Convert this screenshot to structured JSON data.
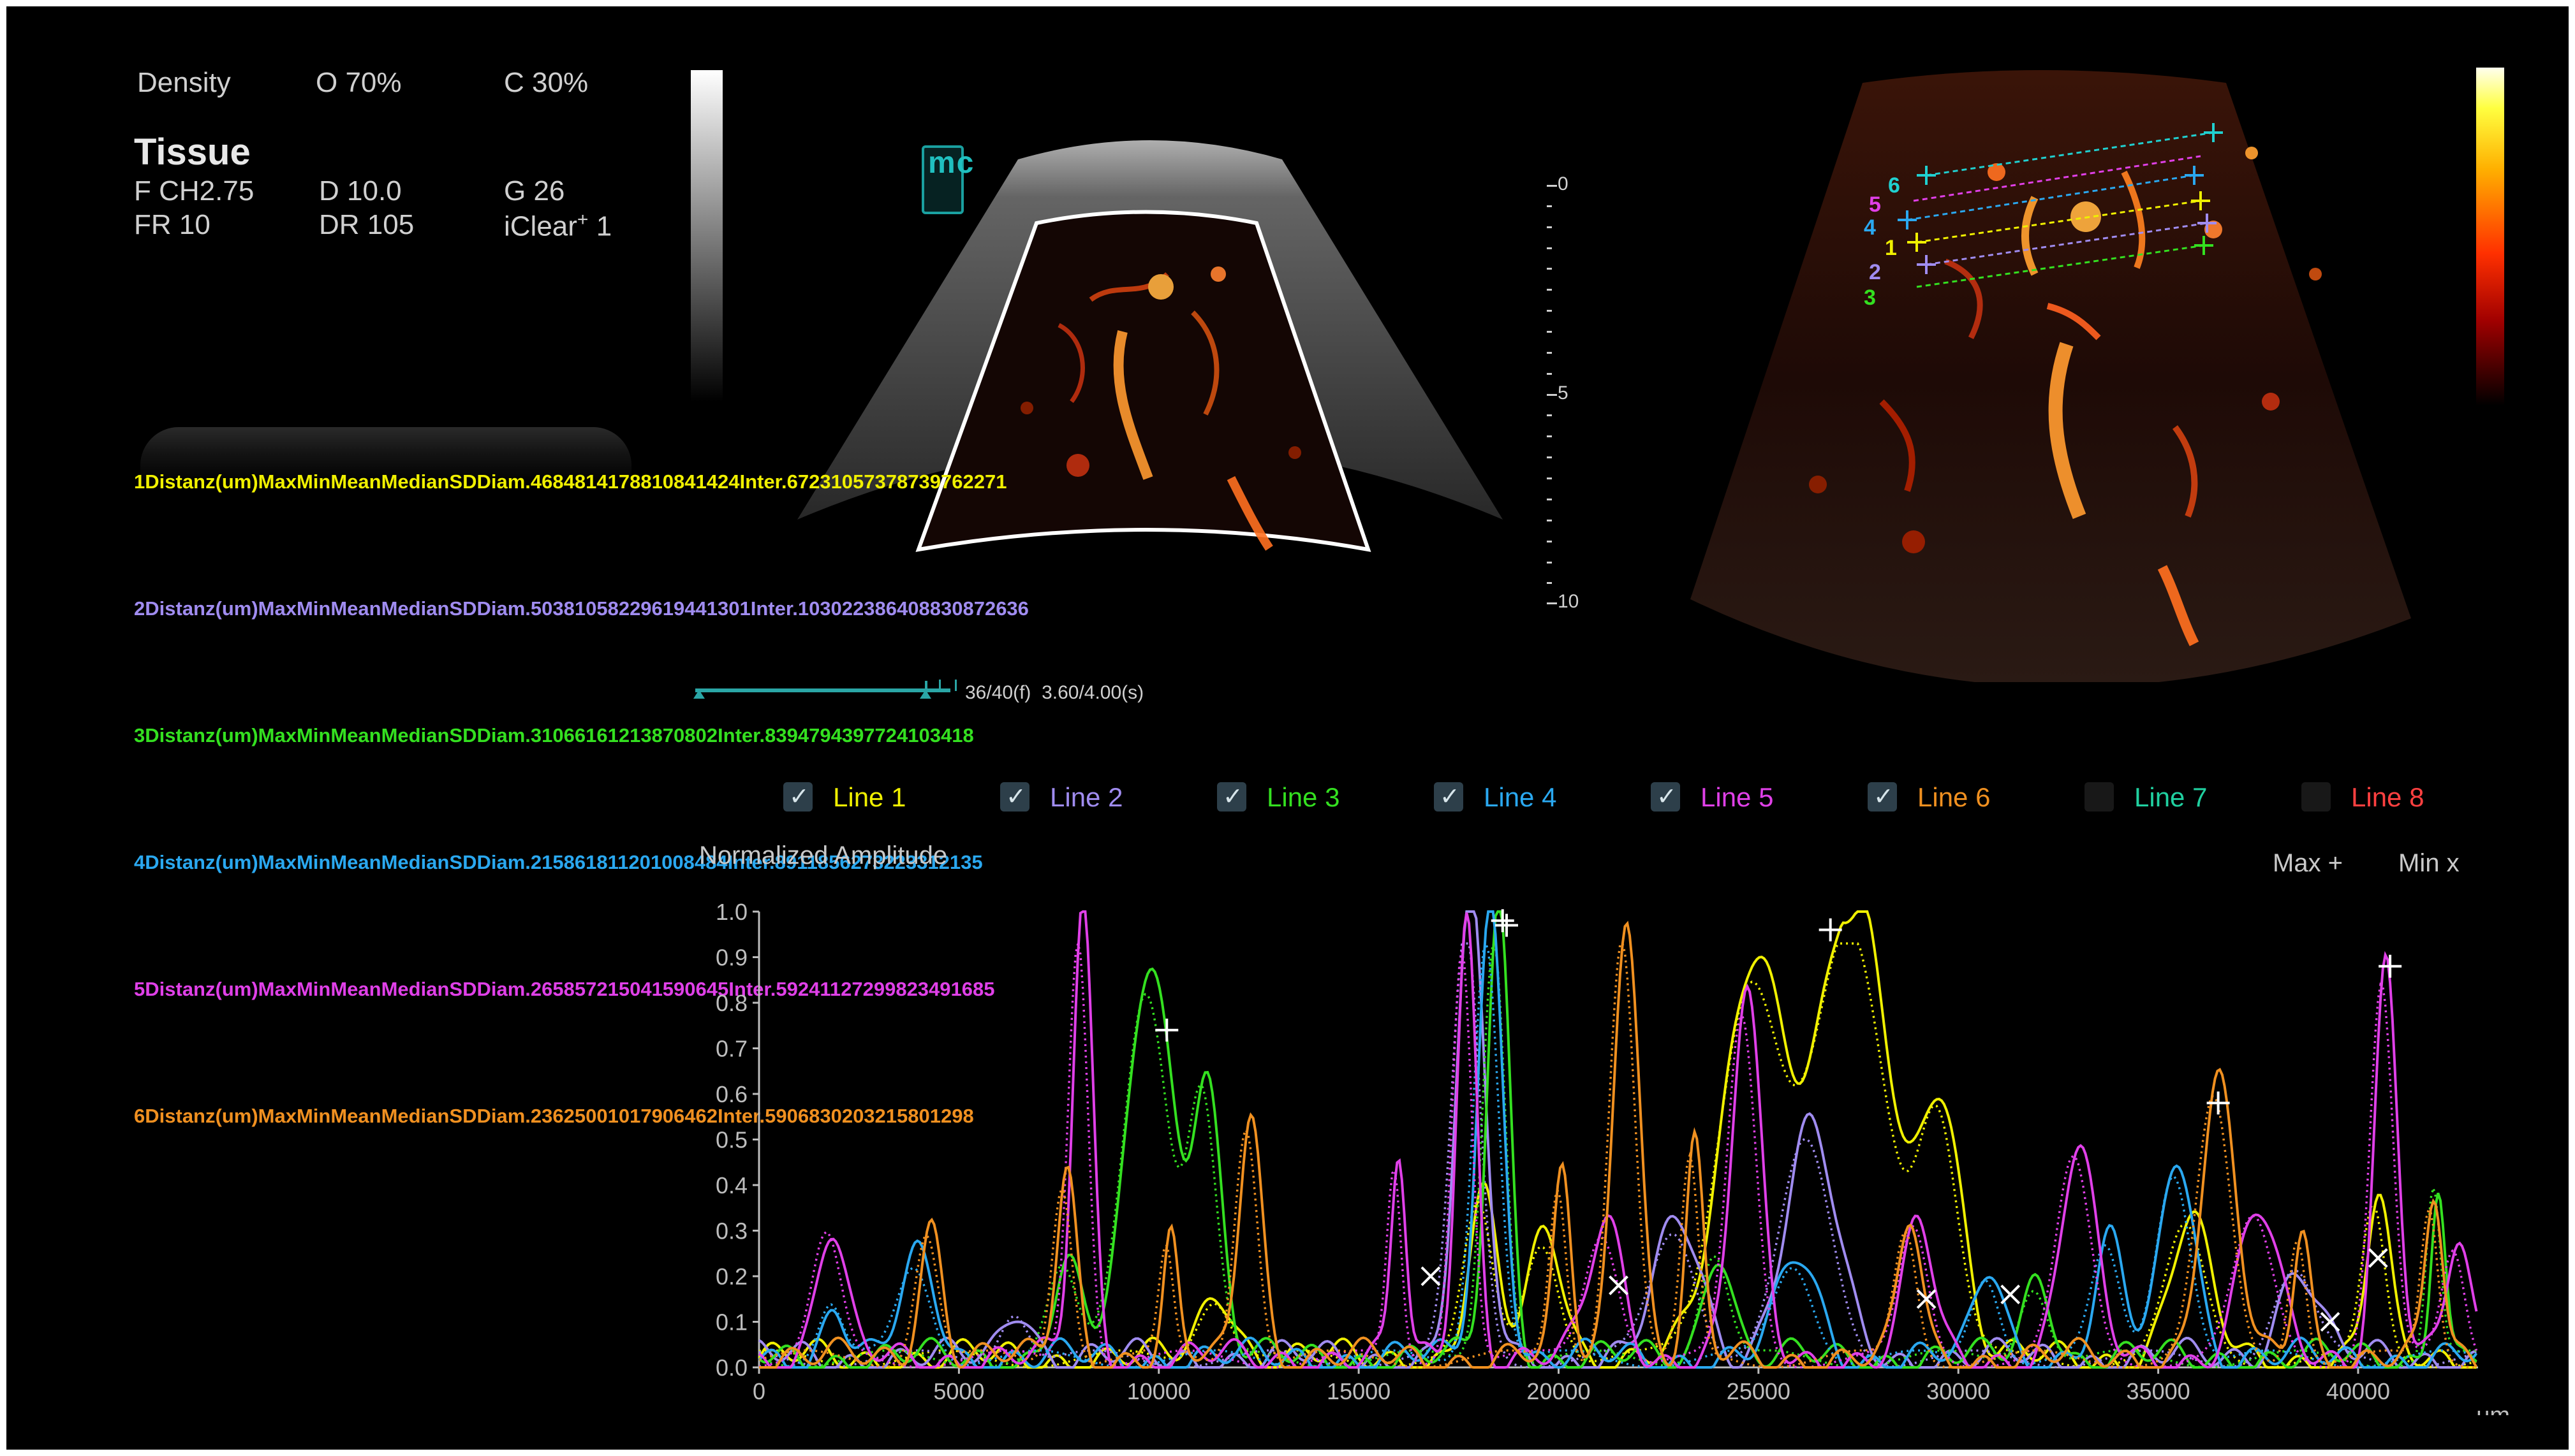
{
  "header": {
    "density_label": "Density",
    "o_value": "O 70%",
    "c_value": "C 30%",
    "mode": "Tissue",
    "freq": "F CH2.75",
    "depth": "D 10.0",
    "gain": "G 26",
    "frame_rate": "FR 10",
    "dynamic_range": "DR 105",
    "iclear_label": "iClear",
    "iclear_sup": "+",
    "iclear_value": "1"
  },
  "probe_logo_text": "mc",
  "depth_scale": {
    "labels": [
      {
        "value": 0,
        "text": "0"
      },
      {
        "value": 5,
        "text": "5"
      },
      {
        "value": 10,
        "text": "10"
      }
    ]
  },
  "timeline": {
    "frames": "36/40(f)",
    "time": "3.60/4.00(s)",
    "progress": 0.9
  },
  "stats_columns": [
    "Max",
    "Min",
    "Mean",
    "Median",
    "SD"
  ],
  "stats": [
    {
      "id": "1",
      "title": "Distanz",
      "unit": "(um)",
      "color": "#f0f000",
      "rows": [
        {
          "label": "Diam.",
          "values": [
            "4684",
            "814",
            "1788",
            "1084",
            "1424"
          ]
        },
        {
          "label": "Inter.",
          "values": [
            "6723",
            "1057",
            "3787",
            "3976",
            "2271"
          ]
        }
      ]
    },
    {
      "id": "2",
      "title": "Distanz",
      "unit": "(um)",
      "color": "#a08cf0",
      "rows": [
        {
          "label": "Diam.",
          "values": [
            "5038",
            "1058",
            "2296",
            "1944",
            "1301"
          ]
        },
        {
          "label": "Inter.",
          "values": [
            "10302",
            "2386",
            "4088",
            "3087",
            "2636"
          ]
        }
      ]
    },
    {
      "id": "3",
      "title": "Distanz",
      "unit": "(um)",
      "color": "#34e020",
      "rows": [
        {
          "label": "Diam.",
          "values": [
            "3106",
            "616",
            "1213",
            "870",
            "802"
          ]
        },
        {
          "label": "Inter.",
          "values": [
            "8394",
            "794",
            "3977",
            "2410",
            "3418"
          ]
        }
      ]
    },
    {
      "id": "4",
      "title": "Distanz",
      "unit": "(um)",
      "color": "#2aa8f0",
      "rows": [
        {
          "label": "Diam.",
          "values": [
            "2158",
            "618",
            "1120",
            "1008",
            "484"
          ]
        },
        {
          "label": "Inter.",
          "values": [
            "8911",
            "856",
            "2732",
            "2331",
            "2135"
          ]
        }
      ]
    },
    {
      "id": "5",
      "title": "Distanz",
      "unit": "(um)",
      "color": "#e040e8",
      "rows": [
        {
          "label": "Diam.",
          "values": [
            "2658",
            "572",
            "1504",
            "1590",
            "645"
          ]
        },
        {
          "label": "Inter.",
          "values": [
            "5924",
            "1127",
            "2998",
            "2349",
            "1685"
          ]
        }
      ]
    },
    {
      "id": "6",
      "title": "Distanz",
      "unit": "(um)",
      "color": "#f09020",
      "rows": [
        {
          "label": "Diam.",
          "values": [
            "2362",
            "500",
            "1017",
            "906",
            "462"
          ]
        },
        {
          "label": "Inter.",
          "values": [
            "5906",
            "830",
            "2032",
            "1580",
            "1298"
          ]
        }
      ]
    }
  ],
  "legend": [
    {
      "label": "Line 1",
      "color": "#f0f000",
      "checked": true
    },
    {
      "label": "Line 2",
      "color": "#a08cf0",
      "checked": true
    },
    {
      "label": "Line 3",
      "color": "#34e020",
      "checked": true
    },
    {
      "label": "Line 4",
      "color": "#2aa8f0",
      "checked": true
    },
    {
      "label": "Line 5",
      "color": "#e040e8",
      "checked": true
    },
    {
      "label": "Line 6",
      "color": "#f09020",
      "checked": true
    },
    {
      "label": "Line 7",
      "color": "#20d0a0",
      "checked": false
    },
    {
      "label": "Line 8",
      "color": "#ff4040",
      "checked": false
    }
  ],
  "roi_markers": [
    {
      "text": "6",
      "color": "#20d0d0"
    },
    {
      "text": "5",
      "color": "#e040e8"
    },
    {
      "text": "4",
      "color": "#2aa8f0"
    },
    {
      "text": "1",
      "color": "#f0f000"
    },
    {
      "text": "2",
      "color": "#a08cf0"
    },
    {
      "text": "3",
      "color": "#34e020"
    }
  ],
  "chart_data": {
    "type": "line",
    "ylabel": "Normalized Amplitude",
    "xlabel": "um",
    "xlim": [
      0,
      43000
    ],
    "ylim": [
      0,
      1.0
    ],
    "x_ticks": [
      0,
      5000,
      10000,
      15000,
      20000,
      25000,
      30000,
      35000,
      40000
    ],
    "y_ticks": [
      0.0,
      0.1,
      0.2,
      0.3,
      0.4,
      0.5,
      0.6,
      0.7,
      0.8,
      0.9,
      1.0
    ],
    "max_marker_label": "Max +",
    "min_marker_label": "Min x",
    "series": [
      {
        "color": "#f0f000",
        "peaks": [
          [
            24900,
            0.88,
            1100
          ],
          [
            27400,
            1.0,
            1300
          ],
          [
            29600,
            0.55,
            700
          ],
          [
            18100,
            0.35,
            500
          ],
          [
            19700,
            0.28,
            600
          ],
          [
            35800,
            0.3,
            700
          ],
          [
            40500,
            0.35,
            400
          ],
          [
            11500,
            0.15,
            600
          ]
        ],
        "max": [
          26800,
          0.96
        ]
      },
      {
        "color": "#a08cf0",
        "peaks": [
          [
            17800,
            1.0,
            500
          ],
          [
            26300,
            0.5,
            900
          ],
          [
            23000,
            0.3,
            800
          ],
          [
            38500,
            0.2,
            700
          ],
          [
            6500,
            0.12,
            500
          ]
        ],
        "max": [
          18700,
          0.97
        ]
      },
      {
        "color": "#34e020",
        "peaks": [
          [
            9800,
            0.88,
            800
          ],
          [
            11200,
            0.6,
            500
          ],
          [
            18500,
            1.0,
            400
          ],
          [
            7700,
            0.2,
            500
          ],
          [
            24000,
            0.25,
            500
          ],
          [
            32000,
            0.18,
            500
          ],
          [
            42000,
            0.4,
            250
          ]
        ],
        "max": [
          10200,
          0.74
        ]
      },
      {
        "color": "#2aa8f0",
        "peaks": [
          [
            18300,
            1.0,
            450
          ],
          [
            35500,
            0.45,
            600
          ],
          [
            33800,
            0.25,
            500
          ],
          [
            4000,
            0.22,
            600
          ],
          [
            1900,
            0.12,
            400
          ],
          [
            26000,
            0.22,
            700
          ],
          [
            30800,
            0.2,
            500
          ]
        ],
        "max": [
          18600,
          0.98
        ]
      },
      {
        "color": "#e040e8",
        "peaks": [
          [
            8100,
            1.0,
            350
          ],
          [
            16000,
            0.44,
            250
          ],
          [
            17700,
            0.98,
            350
          ],
          [
            24700,
            0.8,
            500
          ],
          [
            33000,
            0.46,
            600
          ],
          [
            40700,
            0.88,
            400
          ],
          [
            1800,
            0.28,
            500
          ],
          [
            21200,
            0.3,
            600
          ],
          [
            29000,
            0.3,
            500
          ],
          [
            37500,
            0.32,
            700
          ],
          [
            42500,
            0.25,
            400
          ]
        ],
        "max": [
          40800,
          0.88
        ]
      },
      {
        "color": "#f09020",
        "peaks": [
          [
            7700,
            0.42,
            350
          ],
          [
            10300,
            0.25,
            250
          ],
          [
            12300,
            0.56,
            400
          ],
          [
            21700,
            1.0,
            450
          ],
          [
            20100,
            0.4,
            300
          ],
          [
            23400,
            0.46,
            300
          ],
          [
            28800,
            0.3,
            400
          ],
          [
            36500,
            0.6,
            600
          ],
          [
            4300,
            0.3,
            400
          ],
          [
            38600,
            0.3,
            300
          ],
          [
            41900,
            0.35,
            300
          ]
        ],
        "max": [
          36500,
          0.58
        ]
      }
    ],
    "min_markers": [
      [
        16800,
        0.2
      ],
      [
        21500,
        0.18
      ],
      [
        29200,
        0.15
      ],
      [
        31300,
        0.16
      ],
      [
        39300,
        0.1
      ],
      [
        40500,
        0.24
      ]
    ]
  }
}
